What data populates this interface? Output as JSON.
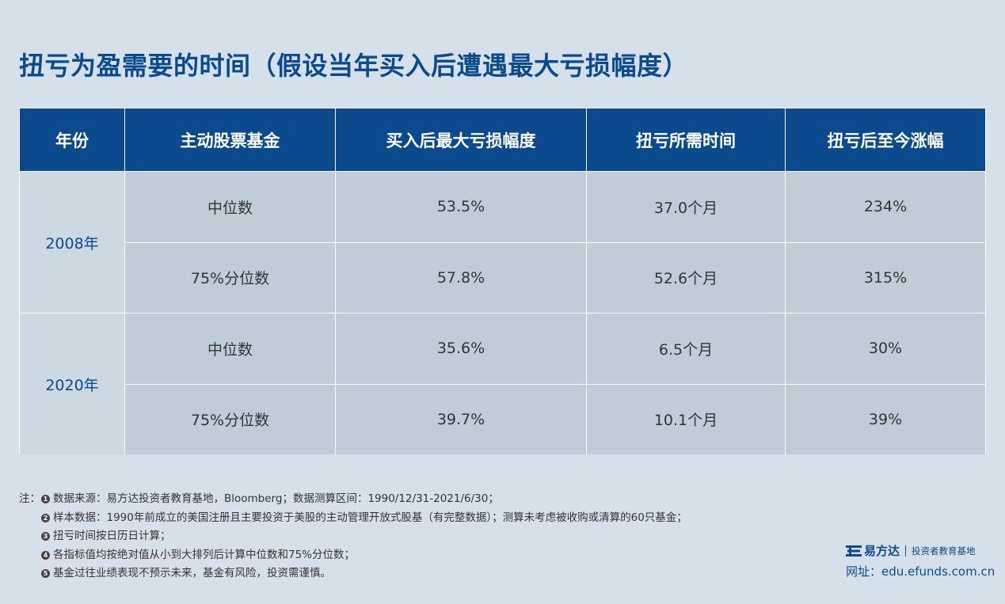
{
  "title": "扭亏为盈需要的时间（假设当年买入后遭遇最大亏损幅度）",
  "table": {
    "headers": [
      "年份",
      "主动股票基金",
      "买入后最大亏损幅度",
      "扭亏所需时间",
      "扭亏后至今涨幅"
    ],
    "groups": [
      {
        "year": "2008年",
        "rows": [
          {
            "type": "中位数",
            "loss": "53.5%",
            "time": "37.0个月",
            "gain": "234%"
          },
          {
            "type": "75%分位数",
            "loss": "57.8%",
            "time": "52.6个月",
            "gain": "315%"
          }
        ]
      },
      {
        "year": "2020年",
        "rows": [
          {
            "type": "中位数",
            "loss": "35.6%",
            "time": "6.5个月",
            "gain": "30%"
          },
          {
            "type": "75%分位数",
            "loss": "39.7%",
            "time": "10.1个月",
            "gain": "39%"
          }
        ]
      }
    ]
  },
  "notes": {
    "prefix": "注：",
    "items": [
      {
        "num": "1",
        "text": "数据来源：易方达投资者教育基地，Bloomberg；数据测算区间：1990/12/31-2021/6/30；"
      },
      {
        "num": "2",
        "text": "样本数据：1990年前成立的美国注册且主要投资于美股的主动管理开放式股基（有完整数据）；测算未考虑被收购或清算的60只基金；"
      },
      {
        "num": "3",
        "text": "扭亏时间按日历日计算；"
      },
      {
        "num": "4",
        "text": "各指标值均按绝对值从小到大排列后计算中位数和75%分位数；"
      },
      {
        "num": "5",
        "text": "基金过往业绩表现不预示未来，基金有风险，投资需谨慎。"
      }
    ]
  },
  "brand": {
    "name": "易方达",
    "tagline": "投资者教育基地",
    "website": "网址：edu.efunds.com.cn",
    "logo_icon": "efunds-logo-icon"
  },
  "colors": {
    "primary": "#0b4a8d",
    "background": "#d5e0ea",
    "row": "#c0cdd8"
  }
}
